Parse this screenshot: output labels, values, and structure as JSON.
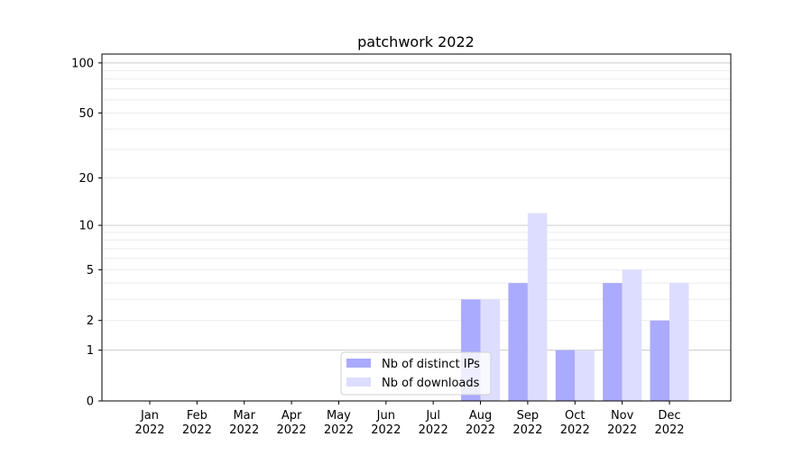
{
  "chart_data": {
    "type": "bar",
    "title": "patchwork 2022",
    "xlabel": "",
    "ylabel": "",
    "yscale": "log(1+y)",
    "ylim": [
      0,
      113
    ],
    "yticks": [
      0,
      1,
      2,
      5,
      10,
      20,
      50,
      100
    ],
    "ytick_labels": [
      "0",
      "1",
      "2",
      "5",
      "10",
      "20",
      "50",
      "100"
    ],
    "grid": true,
    "legend_position": "bottom-center",
    "categories": [
      "Jan\n2022",
      "Feb\n2022",
      "Mar\n2022",
      "Apr\n2022",
      "May\n2022",
      "Jun\n2022",
      "Jul\n2022",
      "Aug\n2022",
      "Sep\n2022",
      "Oct\n2022",
      "Nov\n2022",
      "Dec\n2022"
    ],
    "series": [
      {
        "name": "Nb of distinct IPs",
        "color": "#aaaaff",
        "values": [
          0,
          0,
          0,
          0,
          0,
          0,
          0,
          3,
          4,
          1,
          4,
          2
        ]
      },
      {
        "name": "Nb of downloads",
        "color": "#ddddff",
        "values": [
          0,
          0,
          0,
          0,
          0,
          0,
          0,
          3,
          12,
          1,
          5,
          4
        ]
      }
    ]
  }
}
